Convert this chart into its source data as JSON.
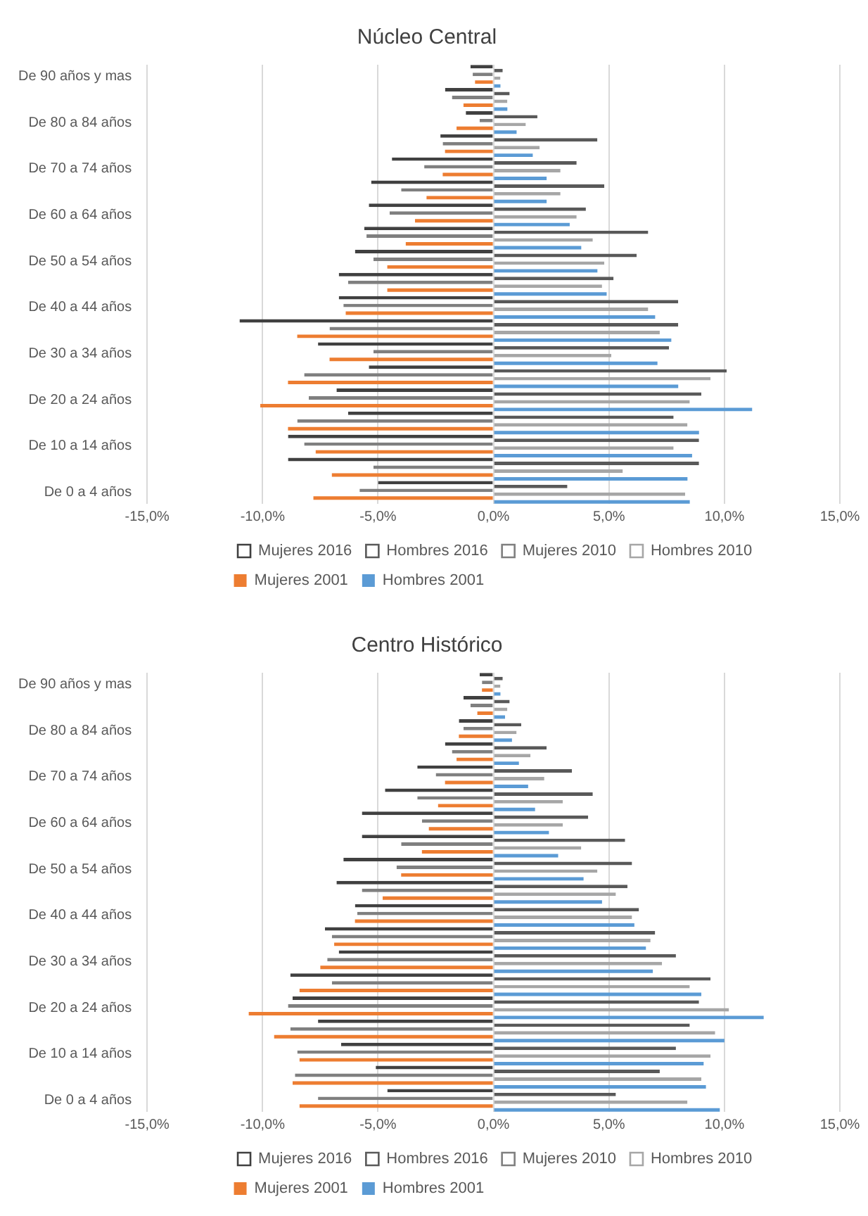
{
  "chart_data": [
    {
      "type": "bar",
      "title": "Núcleo Central",
      "orientation": "horizontal",
      "grid": "x",
      "legend": "bottom",
      "categories": [
        "De 90 años y mas",
        null,
        "De 80 a 84 años",
        null,
        "De 70 a 74 años",
        null,
        "De 60 a 64 años",
        null,
        "De 50 a 54 años",
        null,
        "De 40 a 44 años",
        null,
        "De 30 a 34 años",
        null,
        "De 20 a 24 años",
        null,
        "De 10 a 14 años",
        null,
        "De 0 a 4 años"
      ],
      "xlim": [
        -15,
        15
      ],
      "xticks": [
        {
          "value": -15,
          "label": "-15,0%"
        },
        {
          "value": -10,
          "label": "-10,0%"
        },
        {
          "value": -5,
          "label": "-5,0%"
        },
        {
          "value": 0,
          "label": "0,0%"
        },
        {
          "value": 5,
          "label": "5,0%"
        },
        {
          "value": 10,
          "label": "10,0%"
        },
        {
          "value": 15,
          "label": "15,0%"
        }
      ],
      "series": [
        {
          "name": "Mujeres 2016",
          "color": "#404040",
          "values": [
            -1.0,
            -2.1,
            -1.2,
            -2.3,
            -4.4,
            -5.3,
            -5.4,
            -5.6,
            -6.0,
            -6.7,
            -6.7,
            -11.0,
            -7.6,
            -5.4,
            -6.8,
            -6.3,
            -8.9,
            -8.9,
            -5.0
          ]
        },
        {
          "name": "Hombres 2016",
          "color": "#595959",
          "values": [
            0.4,
            0.7,
            1.9,
            4.5,
            3.6,
            4.8,
            4.0,
            6.7,
            6.2,
            5.2,
            8.0,
            8.0,
            7.6,
            10.1,
            9.0,
            7.8,
            8.9,
            8.9,
            3.2
          ]
        },
        {
          "name": "Mujeres 2010",
          "color": "#7f7f7f",
          "values": [
            -0.9,
            -1.8,
            -0.6,
            -2.2,
            -3.0,
            -4.0,
            -4.5,
            -5.5,
            -5.2,
            -6.3,
            -6.5,
            -7.1,
            -5.2,
            -8.2,
            -8.0,
            -8.5,
            -8.2,
            -5.2,
            -5.8
          ]
        },
        {
          "name": "Hombres 2010",
          "color": "#a6a6a6",
          "values": [
            0.3,
            0.6,
            1.4,
            2.0,
            2.9,
            2.9,
            3.6,
            4.3,
            4.8,
            4.7,
            6.7,
            7.2,
            5.1,
            9.4,
            8.5,
            8.4,
            7.8,
            5.6,
            8.3
          ]
        },
        {
          "name": "Mujeres 2001",
          "color": "#ed7d31",
          "values": [
            -0.8,
            -1.3,
            -1.6,
            -2.1,
            -2.2,
            -2.9,
            -3.4,
            -3.8,
            -4.6,
            -4.6,
            -6.4,
            -8.5,
            -7.1,
            -8.9,
            -10.1,
            -8.9,
            -7.7,
            -7.0,
            -7.8
          ]
        },
        {
          "name": "Hombres 2001",
          "color": "#5b9bd5",
          "values": [
            0.3,
            0.6,
            1.0,
            1.7,
            2.3,
            2.3,
            3.3,
            3.8,
            4.5,
            4.9,
            7.0,
            7.7,
            7.1,
            8.0,
            11.2,
            8.9,
            8.6,
            8.4,
            8.5
          ]
        }
      ]
    },
    {
      "type": "bar",
      "title": "Centro Histórico",
      "orientation": "horizontal",
      "grid": "x",
      "legend": "bottom",
      "categories": [
        "De 90 años y mas",
        null,
        "De 80 a 84 años",
        null,
        "De 70 a 74 años",
        null,
        "De 60 a 64 años",
        null,
        "De 50 a 54 años",
        null,
        "De 40 a 44 años",
        null,
        "De 30 a 34 años",
        null,
        "De 20 a 24 años",
        null,
        "De 10 a 14 años",
        null,
        "De 0 a 4 años"
      ],
      "xlim": [
        -15,
        15
      ],
      "xticks": [
        {
          "value": -15,
          "label": "-15,0%"
        },
        {
          "value": -10,
          "label": "-10,0%"
        },
        {
          "value": -5,
          "label": "-5,0%"
        },
        {
          "value": 0,
          "label": "0,0%"
        },
        {
          "value": 5,
          "label": "5,0%"
        },
        {
          "value": 10,
          "label": "10,0%"
        },
        {
          "value": 15,
          "label": "15,0%"
        }
      ],
      "series": [
        {
          "name": "Mujeres 2016",
          "color": "#404040",
          "values": [
            -0.6,
            -1.3,
            -1.5,
            -2.1,
            -3.3,
            -4.7,
            -5.7,
            -5.7,
            -6.5,
            -6.8,
            -6.0,
            -7.3,
            -6.7,
            -8.8,
            -8.7,
            -7.6,
            -6.6,
            -5.1,
            -4.6
          ]
        },
        {
          "name": "Hombres 2016",
          "color": "#595959",
          "values": [
            0.4,
            0.7,
            1.2,
            2.3,
            3.4,
            4.3,
            4.1,
            5.7,
            6.0,
            5.8,
            6.3,
            7.0,
            7.9,
            9.4,
            8.9,
            8.5,
            7.9,
            7.2,
            5.3
          ]
        },
        {
          "name": "Mujeres 2010",
          "color": "#7f7f7f",
          "values": [
            -0.5,
            -1.0,
            -1.3,
            -1.8,
            -2.5,
            -3.3,
            -3.1,
            -4.0,
            -4.2,
            -5.7,
            -5.9,
            -7.0,
            -7.2,
            -7.0,
            -8.9,
            -8.8,
            -8.5,
            -8.6,
            -7.6
          ]
        },
        {
          "name": "Hombres 2010",
          "color": "#a6a6a6",
          "values": [
            0.3,
            0.6,
            1.0,
            1.6,
            2.2,
            3.0,
            3.0,
            3.8,
            4.5,
            5.3,
            6.0,
            6.8,
            7.3,
            8.5,
            10.2,
            9.6,
            9.4,
            9.0,
            8.4
          ]
        },
        {
          "name": "Mujeres 2001",
          "color": "#ed7d31",
          "values": [
            -0.5,
            -0.7,
            -1.5,
            -1.6,
            -2.1,
            -2.4,
            -2.8,
            -3.1,
            -4.0,
            -4.8,
            -6.0,
            -6.9,
            -7.5,
            -8.4,
            -10.6,
            -9.5,
            -8.4,
            -8.7,
            -8.4
          ]
        },
        {
          "name": "Hombres 2001",
          "color": "#5b9bd5",
          "values": [
            0.3,
            0.5,
            0.8,
            1.1,
            1.5,
            1.8,
            2.4,
            2.8,
            3.9,
            4.7,
            6.1,
            6.6,
            6.9,
            9.0,
            11.7,
            10.0,
            9.1,
            9.2,
            9.8
          ]
        }
      ]
    }
  ]
}
